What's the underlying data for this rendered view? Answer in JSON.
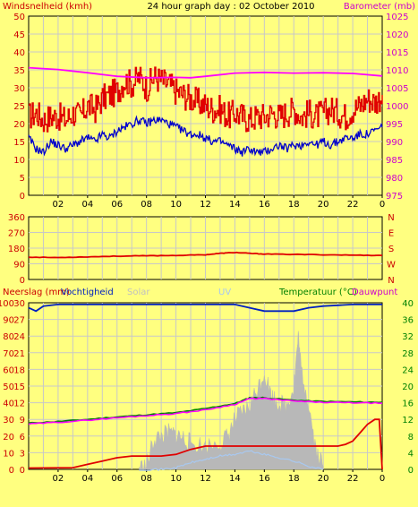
{
  "header": {
    "left_label": "Windsnelheid (kmh)",
    "title": "24 hour graph day : 02 October 2010",
    "right_label": "Barometer (mb)"
  },
  "lower_header": {
    "rain_label": "Neerslag (mm)",
    "humidity_label": "Vochtigheid",
    "solar_label": "Solar",
    "uv_label": "UV",
    "temp_label": "Temperatuur (°C)",
    "dew_label": "Dauwpunt"
  },
  "colors": {
    "background": "#ffff80",
    "grid": "#c8c8c8",
    "wind": "#e00000",
    "gust": "#e00000",
    "baro": "#ff00ff",
    "wind_avg_blue": "#0000cc",
    "direction": "#e00000",
    "humidity": "#0020c0",
    "temperature": "#008000",
    "dewpoint": "#ff00ff",
    "rain": "#e00000",
    "solar": "#b8b8b8",
    "uv": "#a8c8f0",
    "axis_left": "#cc0000",
    "axis_right_baro": "#cc00cc",
    "axis_right_temp": "#008000"
  },
  "chart_data": [
    {
      "type": "line",
      "title": "24 hour graph day : 02 October 2010",
      "x_ticks": [
        "02",
        "04",
        "06",
        "08",
        "10",
        "12",
        "14",
        "16",
        "18",
        "20",
        "22",
        "0"
      ],
      "xlim": [
        0,
        24
      ],
      "y_left": {
        "label": "Windsnelheid (kmh)",
        "ylim": [
          0,
          50
        ],
        "ticks": [
          "0",
          "5",
          "10",
          "15",
          "20",
          "25",
          "30",
          "35",
          "40",
          "45",
          "50"
        ]
      },
      "y_right": {
        "label": "Barometer (mb)",
        "ylim": [
          975,
          1025
        ],
        "ticks": [
          "975",
          "980",
          "985",
          "990",
          "995",
          "1000",
          "1005",
          "1010",
          "1015",
          "1020",
          "1025"
        ]
      },
      "series": [
        {
          "axis": "left",
          "style": "gust-step",
          "values": [
            [
              0,
              22
            ],
            [
              0.5,
              23
            ],
            [
              1,
              21
            ],
            [
              1.5,
              22
            ],
            [
              2,
              22
            ],
            [
              2.5,
              21
            ],
            [
              3,
              23
            ],
            [
              3.5,
              22
            ],
            [
              4,
              25
            ],
            [
              4.5,
              24
            ],
            [
              5,
              27
            ],
            [
              5.5,
              28
            ],
            [
              6,
              29
            ],
            [
              6.5,
              32
            ],
            [
              7,
              31
            ],
            [
              7.5,
              33
            ],
            [
              8,
              30
            ],
            [
              8.5,
              33
            ],
            [
              9,
              32
            ],
            [
              9.5,
              31
            ],
            [
              10,
              29
            ],
            [
              10.5,
              28
            ],
            [
              11,
              27
            ],
            [
              11.5,
              26
            ],
            [
              12,
              25
            ],
            [
              12.5,
              24
            ],
            [
              13,
              24
            ],
            [
              13.5,
              22
            ],
            [
              14,
              23
            ],
            [
              14.5,
              22
            ],
            [
              15,
              21
            ],
            [
              15.5,
              22
            ],
            [
              16,
              22
            ],
            [
              16.5,
              23
            ],
            [
              17,
              22
            ],
            [
              17.5,
              23
            ],
            [
              18,
              24
            ],
            [
              18.5,
              22
            ],
            [
              19,
              23
            ],
            [
              19.5,
              22
            ],
            [
              20,
              23
            ],
            [
              20.5,
              24
            ],
            [
              21,
              23
            ],
            [
              21.5,
              22
            ],
            [
              22,
              24
            ],
            [
              22.5,
              25
            ],
            [
              23,
              27
            ],
            [
              23.5,
              26
            ],
            [
              24,
              28
            ]
          ]
        },
        {
          "axis": "left",
          "style": "blue",
          "values": [
            [
              0,
              16
            ],
            [
              0.5,
              13
            ],
            [
              1,
              12
            ],
            [
              1.5,
              15
            ],
            [
              2,
              14
            ],
            [
              2.5,
              13
            ],
            [
              3,
              14
            ],
            [
              3.5,
              15
            ],
            [
              4,
              16
            ],
            [
              4.5,
              15
            ],
            [
              5,
              17
            ],
            [
              5.5,
              16
            ],
            [
              6,
              18
            ],
            [
              6.5,
              19
            ],
            [
              7,
              20
            ],
            [
              7.5,
              21
            ],
            [
              8,
              20
            ],
            [
              8.5,
              21
            ],
            [
              9,
              21
            ],
            [
              9.5,
              20
            ],
            [
              10,
              19
            ],
            [
              10.5,
              18
            ],
            [
              11,
              17
            ],
            [
              11.5,
              17
            ],
            [
              12,
              16
            ],
            [
              12.5,
              15
            ],
            [
              13,
              15
            ],
            [
              13.5,
              14
            ],
            [
              14,
              13
            ],
            [
              14.5,
              12
            ],
            [
              15,
              13
            ],
            [
              15.5,
              12
            ],
            [
              16,
              12
            ],
            [
              16.5,
              13
            ],
            [
              17,
              14
            ],
            [
              17.5,
              13
            ],
            [
              18,
              14
            ],
            [
              18.5,
              14
            ],
            [
              19,
              15
            ],
            [
              19.5,
              14
            ],
            [
              20,
              15
            ],
            [
              20.5,
              14
            ],
            [
              21,
              15
            ],
            [
              21.5,
              16
            ],
            [
              22,
              16
            ],
            [
              22.5,
              17
            ],
            [
              23,
              17
            ],
            [
              23.5,
              18
            ],
            [
              24,
              19
            ]
          ]
        },
        {
          "axis": "right",
          "name": "Barometer (mb)",
          "values": [
            [
              0,
              1010.6
            ],
            [
              2,
              1010.1
            ],
            [
              4,
              1009.2
            ],
            [
              6,
              1008.2
            ],
            [
              8,
              1007.8
            ],
            [
              10,
              1007.9
            ],
            [
              11,
              1007.8
            ],
            [
              12,
              1008.2
            ],
            [
              14,
              1009.1
            ],
            [
              16,
              1009.3
            ],
            [
              18,
              1009.1
            ],
            [
              20,
              1009.2
            ],
            [
              22,
              1009.0
            ],
            [
              24,
              1008.3
            ]
          ]
        }
      ]
    },
    {
      "type": "line",
      "x_ticks": [
        "02",
        "04",
        "06",
        "08",
        "10",
        "12",
        "14",
        "16",
        "18",
        "20",
        "22",
        "0"
      ],
      "xlim": [
        0,
        24
      ],
      "y_left": {
        "ylim": [
          0,
          360
        ],
        "ticks": [
          "0",
          "90",
          "180",
          "270",
          "360"
        ]
      },
      "right_compass": [
        "N",
        "W",
        "S",
        "E",
        "N"
      ],
      "series": [
        {
          "name": "direction",
          "values": [
            [
              0,
              128
            ],
            [
              2,
              126
            ],
            [
              4,
              130
            ],
            [
              6,
              134
            ],
            [
              8,
              136
            ],
            [
              10,
              138
            ],
            [
              12,
              142
            ],
            [
              13,
              150
            ],
            [
              14,
              155
            ],
            [
              15,
              150
            ],
            [
              16,
              146
            ],
            [
              18,
              144
            ],
            [
              20,
              142
            ],
            [
              22,
              140
            ],
            [
              24,
              138
            ]
          ]
        }
      ]
    },
    {
      "type": "line",
      "x_ticks": [
        "02",
        "04",
        "06",
        "08",
        "10",
        "12",
        "14",
        "16",
        "18",
        "20",
        "22",
        "0"
      ],
      "xlim": [
        0,
        24
      ],
      "y_left": {
        "label": "Neerslag (mm)",
        "ylim": [
          0,
          100
        ],
        "ticks": [
          "0",
          "10",
          "20",
          "30",
          "40",
          "50",
          "60",
          "70",
          "80",
          "90",
          "100"
        ]
      },
      "y_left2": {
        "ticks": [
          "0",
          "3",
          "6",
          "9",
          "12",
          "15",
          "18",
          "21",
          "24",
          "27",
          "30"
        ]
      },
      "y_right": {
        "label": "Temperatuur (°C)",
        "ylim": [
          0,
          40
        ],
        "ticks": [
          "0",
          "4",
          "8",
          "12",
          "16",
          "20",
          "24",
          "28",
          "32",
          "36",
          "40"
        ]
      },
      "series": [
        {
          "name": "Vochtigheid",
          "axis": "left",
          "values": [
            [
              0,
              97
            ],
            [
              0.5,
              95
            ],
            [
              1,
              98
            ],
            [
              2,
              99
            ],
            [
              4,
              99
            ],
            [
              6,
              99
            ],
            [
              8,
              99
            ],
            [
              10,
              99
            ],
            [
              12,
              99
            ],
            [
              14,
              99
            ],
            [
              15,
              97
            ],
            [
              16,
              95
            ],
            [
              17,
              95
            ],
            [
              18,
              95
            ],
            [
              19,
              97
            ],
            [
              20,
              98
            ],
            [
              22,
              99
            ],
            [
              24,
              99
            ]
          ]
        },
        {
          "name": "Temperatuur (°C)",
          "axis": "right",
          "values": [
            [
              0,
              11.1
            ],
            [
              2,
              11.5
            ],
            [
              4,
              12.0
            ],
            [
              6,
              12.6
            ],
            [
              8,
              13.1
            ],
            [
              10,
              13.6
            ],
            [
              12,
              14.6
            ],
            [
              14,
              15.8
            ],
            [
              15,
              17.2
            ],
            [
              16,
              17.2
            ],
            [
              18,
              16.6
            ],
            [
              20,
              16.3
            ],
            [
              22,
              16.2
            ],
            [
              24,
              16.1
            ]
          ]
        },
        {
          "name": "Dauwpunt",
          "axis": "right",
          "values": [
            [
              0,
              10.9
            ],
            [
              2,
              11.3
            ],
            [
              4,
              11.8
            ],
            [
              6,
              12.4
            ],
            [
              8,
              12.9
            ],
            [
              10,
              13.4
            ],
            [
              12,
              14.3
            ],
            [
              14,
              15.6
            ],
            [
              15,
              17.0
            ],
            [
              16,
              17.0
            ],
            [
              18,
              16.4
            ],
            [
              20,
              16.1
            ],
            [
              22,
              16.0
            ],
            [
              24,
              15.9
            ]
          ]
        },
        {
          "name": "Neerslag (mm)",
          "axis": "left",
          "values": [
            [
              0,
              0.8
            ],
            [
              3,
              1.0
            ],
            [
              4,
              3
            ],
            [
              5,
              5
            ],
            [
              6,
              7
            ],
            [
              7,
              8
            ],
            [
              9,
              8
            ],
            [
              10,
              9
            ],
            [
              11,
              12
            ],
            [
              12,
              14
            ],
            [
              14,
              14
            ],
            [
              16,
              14
            ],
            [
              18,
              14
            ],
            [
              20,
              14
            ],
            [
              21,
              14
            ],
            [
              21.5,
              15
            ],
            [
              22,
              17
            ],
            [
              22.5,
              22
            ],
            [
              23,
              27
            ],
            [
              23.5,
              30
            ],
            [
              23.8,
              30
            ],
            [
              24,
              0
            ]
          ]
        },
        {
          "name": "Solar",
          "axis": "left",
          "style": "area",
          "values": [
            [
              7.5,
              1
            ],
            [
              8,
              2
            ],
            [
              8.5,
              18
            ],
            [
              9,
              20
            ],
            [
              9.5,
              22
            ],
            [
              10,
              21
            ],
            [
              10.5,
              19
            ],
            [
              11,
              16
            ],
            [
              12,
              14
            ],
            [
              13,
              16
            ],
            [
              13.5,
              20
            ],
            [
              14,
              30
            ],
            [
              14.5,
              34
            ],
            [
              15,
              38
            ],
            [
              15.5,
              48
            ],
            [
              16,
              58
            ],
            [
              16.5,
              44
            ],
            [
              17,
              40
            ],
            [
              17.5,
              38
            ],
            [
              18,
              50
            ],
            [
              18.3,
              80
            ],
            [
              18.5,
              60
            ],
            [
              19,
              40
            ],
            [
              19.5,
              12
            ],
            [
              20,
              2
            ]
          ]
        },
        {
          "name": "UV",
          "axis": "left",
          "values": [
            [
              7.5,
              0
            ],
            [
              9,
              0
            ],
            [
              10,
              1
            ],
            [
              11,
              4
            ],
            [
              12,
              6
            ],
            [
              13,
              8
            ],
            [
              14,
              9
            ],
            [
              15,
              11
            ],
            [
              16,
              9
            ],
            [
              17,
              7
            ],
            [
              18,
              5
            ],
            [
              19,
              2
            ],
            [
              20,
              0
            ]
          ]
        }
      ]
    }
  ]
}
